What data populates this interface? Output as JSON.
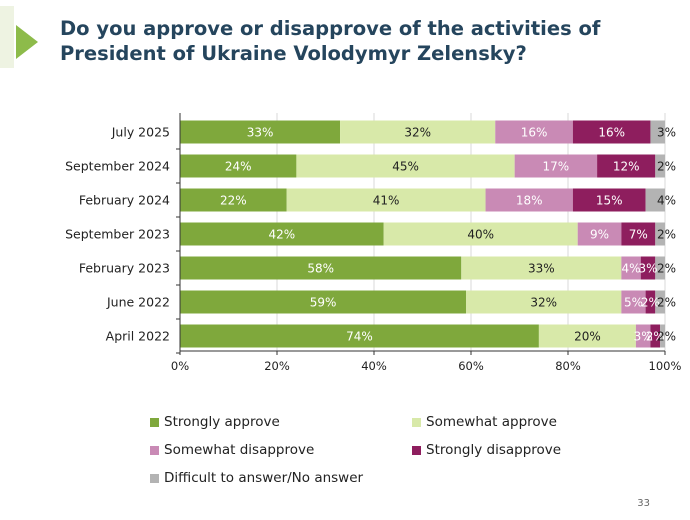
{
  "title": {
    "line1": "Do you approve or disapprove of the activities of",
    "line2": "President of Ukraine Volodymyr Zelensky?"
  },
  "page_number": "33",
  "colors": {
    "title": "#25455d",
    "title_mark": "#8dbb4a",
    "grid": "#d9d9d9",
    "axis": "#333333"
  },
  "chart_data": {
    "type": "bar",
    "orientation": "horizontal",
    "stacked": true,
    "title": "Do you approve or disapprove of the activities of President of Ukraine Volodymyr Zelensky?",
    "categories": [
      "July 2025",
      "September 2024",
      "February 2024",
      "September 2023",
      "February 2023",
      "June 2022",
      "April 2022"
    ],
    "series": [
      {
        "name": "Strongly approve",
        "color": "#7fa83c",
        "label_color": "#ffffff",
        "values": [
          33,
          24,
          22,
          42,
          58,
          59,
          74
        ]
      },
      {
        "name": "Somewhat approve",
        "color": "#d8e9a9",
        "label_color": "#222222",
        "values": [
          32,
          45,
          41,
          40,
          33,
          32,
          20
        ]
      },
      {
        "name": "Somewhat disapprove",
        "color": "#c98ab5",
        "label_color": "#ffffff",
        "values": [
          16,
          17,
          18,
          9,
          4,
          5,
          3
        ]
      },
      {
        "name": "Strongly disapprove",
        "color": "#8e1e5e",
        "label_color": "#ffffff",
        "values": [
          16,
          12,
          15,
          7,
          3,
          2,
          2
        ]
      },
      {
        "name": "Difficult to answer/No answer",
        "color": "#b3b3b3",
        "label_color": "#222222",
        "values": [
          3,
          2,
          4,
          2,
          2,
          2,
          2
        ]
      }
    ],
    "data_labels": [
      [
        "33%",
        "32%",
        "16%",
        "16%",
        "3%"
      ],
      [
        "24%",
        "45%",
        "17%",
        "12%",
        "2%"
      ],
      [
        "22%",
        "41%",
        "18%",
        "15%",
        "4%"
      ],
      [
        "42%",
        "40%",
        "9%",
        "7%",
        "2%"
      ],
      [
        "58%",
        "33%",
        "4%",
        "3%",
        "2%"
      ],
      [
        "59%",
        "32%",
        "5%",
        "2%",
        "2%"
      ],
      [
        "74%",
        "20%",
        "3%",
        "2%",
        "2%"
      ]
    ],
    "x_ticks": [
      0,
      20,
      40,
      60,
      80,
      100
    ],
    "x_tick_labels": [
      "0%",
      "20%",
      "40%",
      "60%",
      "80%",
      "100%"
    ],
    "xlim": [
      0,
      100
    ],
    "grid": true,
    "legend_position": "bottom",
    "xlabel": "",
    "ylabel": ""
  }
}
